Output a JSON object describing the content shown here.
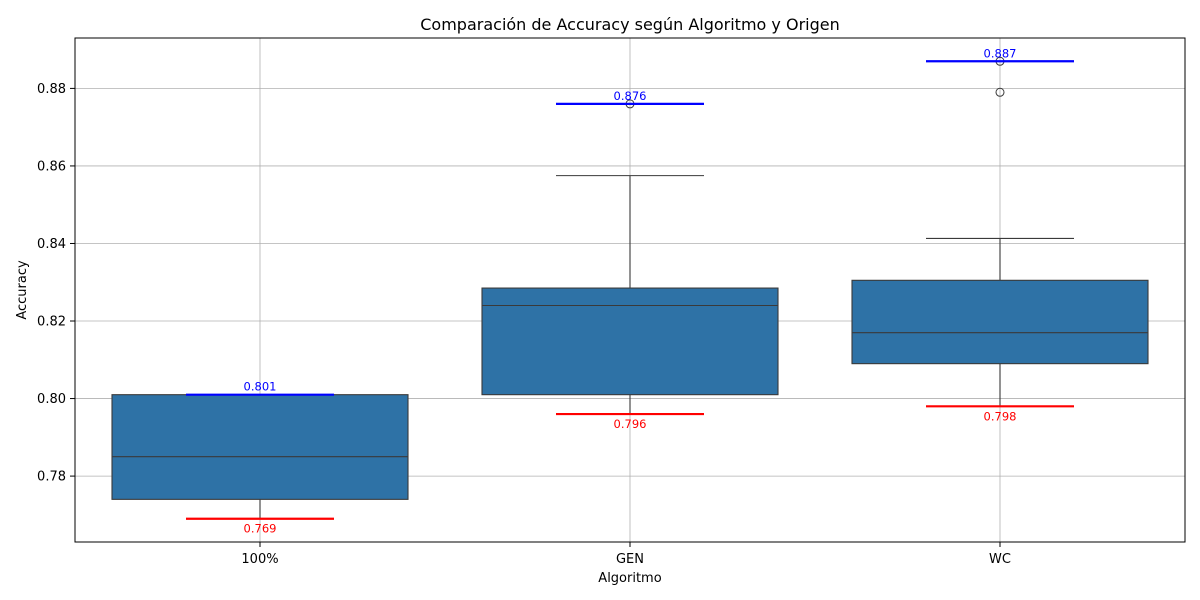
{
  "chart_data": {
    "type": "box",
    "title": "Comparación de Accuracy según Algoritmo y Origen",
    "xlabel": "Algoritmo",
    "ylabel": "Accuracy",
    "ylim": [
      0.763,
      0.893
    ],
    "yticks": [
      "0.78",
      "0.80",
      "0.82",
      "0.84",
      "0.86",
      "0.88"
    ],
    "ytick_values": [
      0.78,
      0.8,
      0.82,
      0.84,
      0.86,
      0.88
    ],
    "grid": true,
    "box_color": "#2e72a6",
    "edge_color": "#3a3a3a",
    "max_line_color": "#0000ff",
    "min_line_color": "#ff0000",
    "categories": [
      "100%",
      "GEN",
      "WC"
    ],
    "boxes": [
      {
        "category": "100%",
        "whisker_low": 0.769,
        "q1": 0.774,
        "median": 0.785,
        "q3": 0.801,
        "whisker_high": 0.801,
        "outliers": [],
        "max": 0.801,
        "max_label": "0.801",
        "min": 0.769,
        "min_label": "0.769"
      },
      {
        "category": "GEN",
        "whisker_low": 0.796,
        "q1": 0.801,
        "median": 0.824,
        "q3": 0.8285,
        "whisker_high": 0.8575,
        "outliers": [
          0.876
        ],
        "max": 0.876,
        "max_label": "0.876",
        "min": 0.796,
        "min_label": "0.796"
      },
      {
        "category": "WC",
        "whisker_low": 0.798,
        "q1": 0.809,
        "median": 0.817,
        "q3": 0.8305,
        "whisker_high": 0.8413,
        "outliers": [
          0.879,
          0.887
        ],
        "max": 0.887,
        "max_label": "0.887",
        "min": 0.798,
        "min_label": "0.798"
      }
    ]
  }
}
